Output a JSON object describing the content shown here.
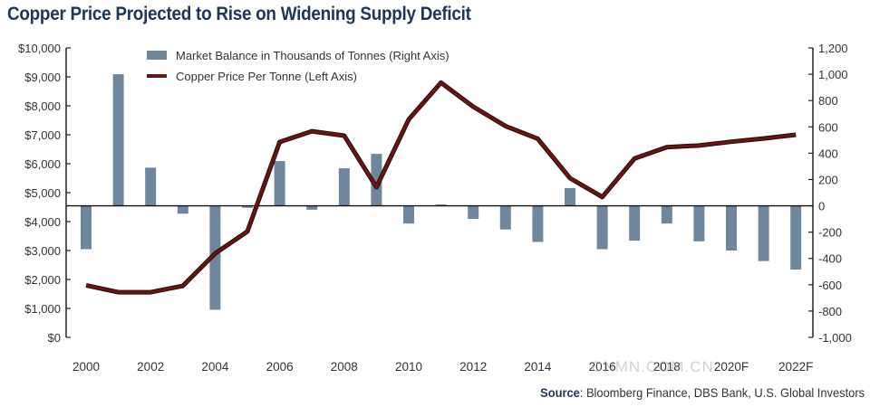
{
  "chart_data": {
    "type": "bar+line",
    "title": "Copper Price Projected to Rise on Widening Supply Deficit",
    "source_label": "Source",
    "source_text": ": Bloomberg Finance, DBS Bank, U.S. Global Investors",
    "watermark": "CNMN.COM.CN",
    "categories": [
      "2000",
      "2001",
      "2002",
      "2003",
      "2004",
      "2005",
      "2006",
      "2007",
      "2008",
      "2009",
      "2010",
      "2011",
      "2012",
      "2013",
      "2014",
      "2015",
      "2016",
      "2017",
      "2018",
      "2019",
      "2020F",
      "2021F",
      "2022F"
    ],
    "x_tick_labels": [
      "2000",
      "2002",
      "2004",
      "2006",
      "2008",
      "2010",
      "2012",
      "2014",
      "2016",
      "2018",
      "2020F",
      "2022F"
    ],
    "series": [
      {
        "name": "Market Balance in Thousands of Tonnes (Right Axis)",
        "type": "bar",
        "axis": "right",
        "color": "#6f879c",
        "values": [
          -330,
          1000,
          290,
          -60,
          -790,
          -15,
          340,
          -30,
          285,
          395,
          -135,
          10,
          -100,
          -180,
          -275,
          135,
          -330,
          -265,
          -135,
          -270,
          -340,
          -420,
          -485
        ]
      },
      {
        "name": "Copper Price Per Tonne (Left Axis)",
        "type": "line",
        "axis": "left",
        "color": "#6b1414",
        "values": [
          1800,
          1560,
          1560,
          1780,
          2900,
          3660,
          6750,
          7120,
          6970,
          5190,
          7530,
          8800,
          7970,
          7300,
          6860,
          5500,
          4850,
          6180,
          6570,
          6630,
          6760,
          6870,
          7000
        ]
      }
    ],
    "left_axis": {
      "ylim": [
        0,
        10000
      ],
      "tick_labels": [
        "$0",
        "$1,000",
        "$2,000",
        "$3,000",
        "$4,000",
        "$5,000",
        "$6,000",
        "$7,000",
        "$8,000",
        "$9,000",
        "$10,000"
      ]
    },
    "right_axis": {
      "ylim": [
        -1000,
        1200
      ],
      "tick_labels": [
        "-1,000",
        "-800",
        "-600",
        "-400",
        "-200",
        "0",
        "200",
        "400",
        "600",
        "800",
        "1,000",
        "1,200"
      ]
    },
    "legend_position": "top-left",
    "grid": false
  }
}
